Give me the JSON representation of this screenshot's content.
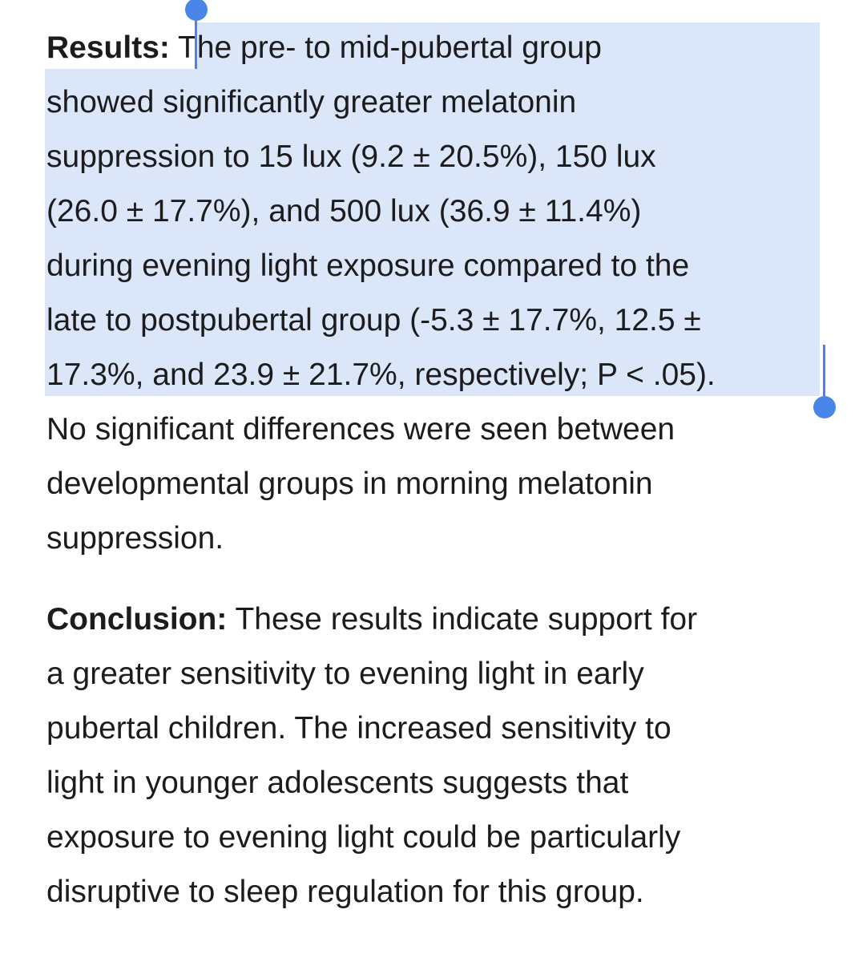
{
  "results": {
    "label": "Results:",
    "first_line": "The pre- to mid-pubertal group",
    "selected_lines": [
      "showed significantly greater melatonin",
      "suppression to 15 lux (9.2 ± 20.5%), 150 lux",
      "(26.0 ± 17.7%), and 500 lux (36.9 ± 11.4%)",
      "during evening light exposure compared to the",
      "late to postpubertal group (-5.3 ± 17.7%, 12.5 ±",
      "17.3%, and 23.9 ± 21.7%, respectively; P < .05)."
    ],
    "lines": [
      "No significant differences were seen between",
      "developmental groups in morning melatonin",
      "suppression."
    ]
  },
  "conclusion": {
    "label": "Conclusion:",
    "first_line": "These results indicate support for",
    "lines": [
      "a greater sensitivity to evening light in early",
      "pubertal children. The increased sensitivity to",
      "light in younger adolescents suggests that",
      "exposure to evening light could be particularly",
      "disruptive to sleep regulation for this group."
    ]
  }
}
